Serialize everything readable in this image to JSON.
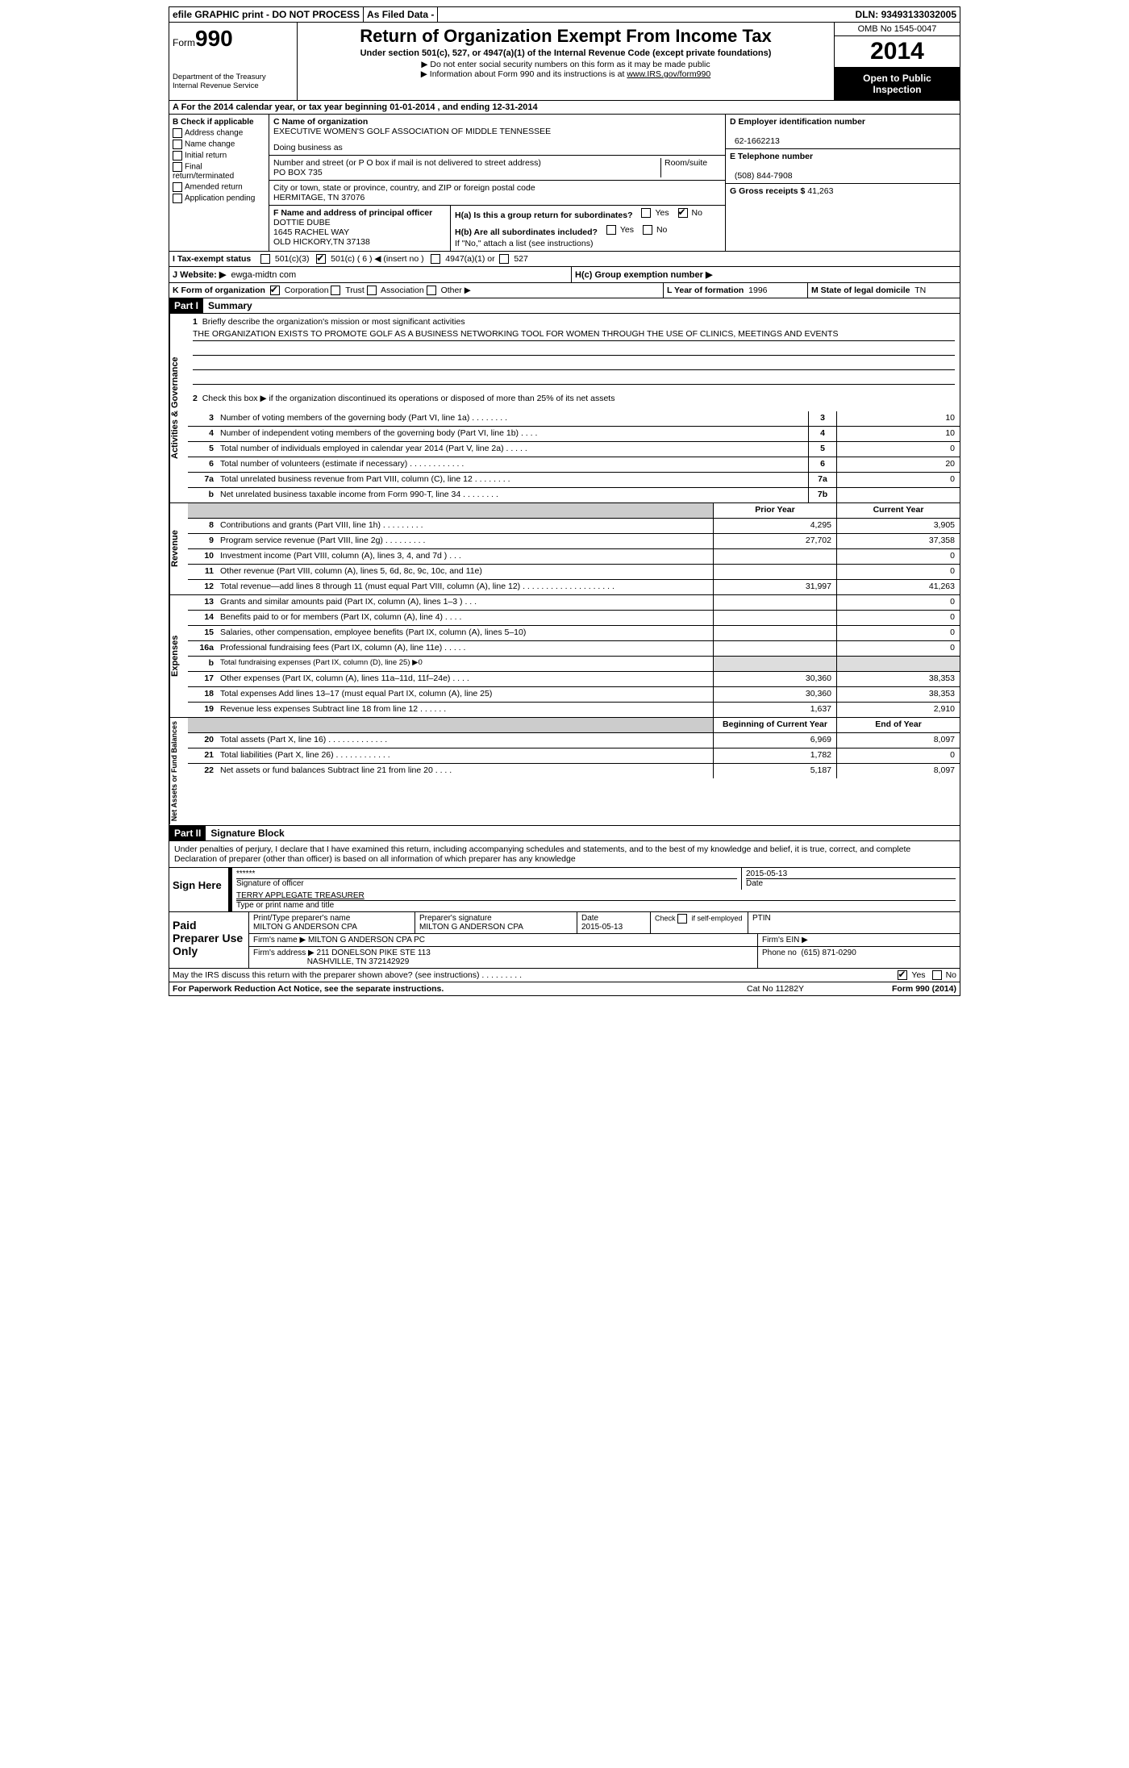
{
  "topbar": {
    "efile": "efile GRAPHIC print - DO NOT PROCESS",
    "asfiled": "As Filed Data -",
    "dln_label": "DLN:",
    "dln": "93493133032005"
  },
  "header": {
    "form_prefix": "Form",
    "form_num": "990",
    "dept1": "Department of the Treasury",
    "dept2": "Internal Revenue Service",
    "title": "Return of Organization Exempt From Income Tax",
    "subtitle": "Under section 501(c), 527, or 4947(a)(1) of the Internal Revenue Code (except private foundations)",
    "note1": "Do not enter social security numbers on this form as it may be made public",
    "note2_pre": "Information about Form 990 and its instructions is at ",
    "note2_link": "www.IRS.gov/form990",
    "omb": "OMB No 1545-0047",
    "year": "2014",
    "open": "Open to Public Inspection"
  },
  "rowA": "A  For the 2014 calendar year, or tax year beginning 01-01-2014    , and ending 12-31-2014",
  "colB": {
    "hdr": "B  Check if applicable",
    "items": [
      "Address change",
      "Name change",
      "Initial return",
      "Final return/terminated",
      "Amended return",
      "Application pending"
    ]
  },
  "colC": {
    "name_lbl": "C Name of organization",
    "name": "EXECUTIVE WOMEN'S GOLF ASSOCIATION OF MIDDLE TENNESSEE",
    "dba_lbl": "Doing business as",
    "street_lbl": "Number and street (or P O  box if mail is not delivered to street address)",
    "street": "PO BOX 735",
    "room_lbl": "Room/suite",
    "city_lbl": "City or town, state or province, country, and ZIP or foreign postal code",
    "city": "HERMITAGE, TN  37076",
    "officer_lbl": "F  Name and address of principal officer",
    "officer1": "DOTTIE DUBE",
    "officer2": "1645 RACHEL WAY",
    "officer3": "OLD HICKORY,TN  37138"
  },
  "colD": {
    "ein_lbl": "D Employer identification number",
    "ein": "62-1662213",
    "tel_lbl": "E Telephone number",
    "tel": "(508) 844-7908",
    "gross_lbl": "G Gross receipts $",
    "gross": "41,263"
  },
  "colH": {
    "ha": "H(a)  Is this a group return for subordinates?",
    "hb": "H(b)  Are all subordinates included?",
    "hb2": "If \"No,\" attach a list  (see instructions)",
    "hc": "H(c)  Group exemption number ▶",
    "yes": "Yes",
    "no": "No"
  },
  "rowI": {
    "lbl": "I  Tax-exempt status",
    "o1": "501(c)(3)",
    "o2": "501(c) ( 6 ) ◀ (insert no )",
    "o3": "4947(a)(1) or",
    "o4": "527"
  },
  "rowJ": {
    "lbl": "J  Website: ▶",
    "val": "ewga-midtn com"
  },
  "rowK": {
    "lbl": "K Form of organization",
    "o1": "Corporation",
    "o2": "Trust",
    "o3": "Association",
    "o4": "Other ▶",
    "L_lbl": "L Year of formation",
    "L_val": "1996",
    "M_lbl": "M State of legal domicile",
    "M_val": "TN"
  },
  "part1": {
    "num": "Part I",
    "title": "Summary"
  },
  "mission": {
    "n": "1",
    "lbl": "Briefly describe the organization's mission or most significant activities",
    "text": "THE ORGANIZATION EXISTS TO PROMOTE GOLF AS A BUSINESS NETWORKING TOOL FOR WOMEN THROUGH THE USE OF CLINICS, MEETINGS AND EVENTS"
  },
  "line2": {
    "n": "2",
    "text": "Check this box ▶     if the organization discontinued its operations or disposed of more than 25% of its net assets"
  },
  "gov_lines": [
    {
      "n": "3",
      "d": "Number of voting members of the governing body (Part VI, line 1a)  .   .   .   .   .   .   .   .",
      "box": "3",
      "v": "10"
    },
    {
      "n": "4",
      "d": "Number of independent voting members of the governing body (Part VI, line 1b)   .   .   .   .",
      "box": "4",
      "v": "10"
    },
    {
      "n": "5",
      "d": "Total number of individuals employed in calendar year 2014 (Part V, line 2a)   .   .   .   .   .",
      "box": "5",
      "v": "0"
    },
    {
      "n": "6",
      "d": "Total number of volunteers (estimate if necessary)   .   .   .   .   .   .   .   .   .   .   .   .",
      "box": "6",
      "v": "20"
    },
    {
      "n": "7a",
      "d": "Total unrelated business revenue from Part VIII, column (C), line 12   .   .   .   .   .   .   .   .",
      "box": "7a",
      "v": "0"
    },
    {
      "n": "b",
      "d": "Net unrelated business taxable income from Form 990-T, line 34    .   .   .   .   .   .   .   .",
      "box": "7b",
      "v": ""
    }
  ],
  "rev_hdr": {
    "py": "Prior Year",
    "cy": "Current Year"
  },
  "rev_lines": [
    {
      "n": "8",
      "d": "Contributions and grants (Part VIII, line 1h)   .   .   .   .   .   .   .   .   .",
      "py": "4,295",
      "cy": "3,905"
    },
    {
      "n": "9",
      "d": "Program service revenue (Part VIII, line 2g)   .   .   .   .   .   .   .   .   .",
      "py": "27,702",
      "cy": "37,358"
    },
    {
      "n": "10",
      "d": "Investment income (Part VIII, column (A), lines 3, 4, and 7d )   .   .   .",
      "py": "",
      "cy": "0"
    },
    {
      "n": "11",
      "d": "Other revenue (Part VIII, column (A), lines 5, 6d, 8c, 9c, 10c, and 11e)",
      "py": "",
      "cy": "0"
    },
    {
      "n": "12",
      "d": "Total revenue—add lines 8 through 11 (must equal Part VIII, column (A), line 12)  .   .   .   .   .   .   .   .   .   .   .   .   .   .   .   .   .   .   .   .",
      "py": "31,997",
      "cy": "41,263"
    }
  ],
  "exp_lines": [
    {
      "n": "13",
      "d": "Grants and similar amounts paid (Part IX, column (A), lines 1–3 )  .   .   .",
      "py": "",
      "cy": "0"
    },
    {
      "n": "14",
      "d": "Benefits paid to or for members (Part IX, column (A), line 4)   .   .   .   .",
      "py": "",
      "cy": "0"
    },
    {
      "n": "15",
      "d": "Salaries, other compensation, employee benefits (Part IX, column (A), lines 5–10)",
      "py": "",
      "cy": "0"
    },
    {
      "n": "16a",
      "d": "Professional fundraising fees (Part IX, column (A), line 11e)  .   .   .   .   .",
      "py": "",
      "cy": "0"
    },
    {
      "n": "b",
      "d": "Total fundraising expenses (Part IX, column (D), line 25) ▶0",
      "py": "gray",
      "cy": "gray"
    },
    {
      "n": "17",
      "d": "Other expenses (Part IX, column (A), lines 11a–11d, 11f–24e)   .   .   .   .",
      "py": "30,360",
      "cy": "38,353"
    },
    {
      "n": "18",
      "d": "Total expenses  Add lines 13–17 (must equal Part IX, column (A), line 25)",
      "py": "30,360",
      "cy": "38,353"
    },
    {
      "n": "19",
      "d": "Revenue less expenses  Subtract line 18 from line 12   .   .   .   .   .   .",
      "py": "1,637",
      "cy": "2,910"
    }
  ],
  "na_hdr": {
    "py": "Beginning of Current Year",
    "cy": "End of Year"
  },
  "na_lines": [
    {
      "n": "20",
      "d": "Total assets (Part X, line 16)   .   .   .   .   .   .   .   .   .   .   .   .   .",
      "py": "6,969",
      "cy": "8,097"
    },
    {
      "n": "21",
      "d": "Total liabilities (Part X, line 26)   .   .   .   .   .   .   .   .   .   .   .   .",
      "py": "1,782",
      "cy": "0"
    },
    {
      "n": "22",
      "d": "Net assets or fund balances  Subtract line 21 from line 20   .   .   .   .",
      "py": "5,187",
      "cy": "8,097"
    }
  ],
  "part2": {
    "num": "Part II",
    "title": "Signature Block"
  },
  "perjury": "Under penalties of perjury, I declare that I have examined this return, including accompanying schedules and statements, and to the best of my knowledge and belief, it is true, correct, and complete  Declaration of preparer (other than officer) is based on all information of which preparer has any knowledge",
  "sign": {
    "here": "Sign Here",
    "stars": "******",
    "sig_lbl": "Signature of officer",
    "date": "2015-05-13",
    "date_lbl": "Date",
    "name": "TERRY APPLEGATE TREASURER",
    "name_lbl": "Type or print name and title"
  },
  "prep": {
    "hdr": "Paid Preparer Use Only",
    "name_lbl": "Print/Type preparer's name",
    "name": "MILTON G ANDERSON CPA",
    "sig_lbl": "Preparer's signature",
    "sig": "MILTON G ANDERSON CPA",
    "date_lbl": "Date",
    "date": "2015-05-13",
    "se_lbl": "Check      if self-employed",
    "ptin_lbl": "PTIN",
    "firm_lbl": "Firm's name    ▶",
    "firm": "MILTON G ANDERSON CPA PC",
    "ein_lbl": "Firm's EIN ▶",
    "addr_lbl": "Firm's address ▶",
    "addr1": "211 DONELSON PIKE STE 113",
    "addr2": "NASHVILLE, TN  372142929",
    "phone_lbl": "Phone no",
    "phone": "(615) 871-0290"
  },
  "discuss": "May the IRS discuss this return with the preparer shown above? (see instructions)   .   .   .   .   .   .   .   .   .",
  "footer": {
    "pra": "For Paperwork Reduction Act Notice, see the separate instructions.",
    "cat": "Cat No 11282Y",
    "form": "Form 990 (2014)"
  },
  "side_labels": {
    "ag": "Activities & Governance",
    "rev": "Revenue",
    "exp": "Expenses",
    "na": "Net Assets or Fund Balances"
  }
}
